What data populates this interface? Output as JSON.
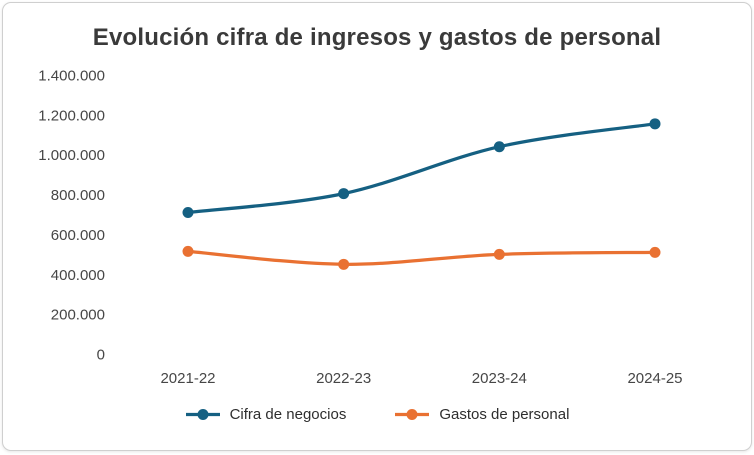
{
  "window": {
    "type": "chart-card",
    "background": "#ffffff",
    "border_color": "#cfcfcf"
  },
  "chart_data": {
    "type": "line",
    "title": "Evolución cifra de ingresos y gastos de personal",
    "title_color": "#3a3a3a",
    "categories": [
      "2021-22",
      "2022-23",
      "2023-24",
      "2024-25"
    ],
    "series": [
      {
        "name": "Cifra de negocios",
        "color": "#156082",
        "values": [
          710000,
          805000,
          1040000,
          1155000
        ]
      },
      {
        "name": "Gastos de personal",
        "color": "#E97132",
        "values": [
          515000,
          450000,
          500000,
          510000
        ]
      }
    ],
    "ylim": [
      0,
      1400000
    ],
    "ytick_step": 200000,
    "ytick_labels": [
      "0",
      "200.000",
      "400.000",
      "600.000",
      "800.000",
      "1.000.000",
      "1.200.000",
      "1.400.000"
    ],
    "xlabel": "",
    "ylabel": "",
    "grid": false,
    "smoothed_lines": true,
    "markers": "circle",
    "legend_position": "bottom",
    "axis_text_color": "#464646"
  }
}
